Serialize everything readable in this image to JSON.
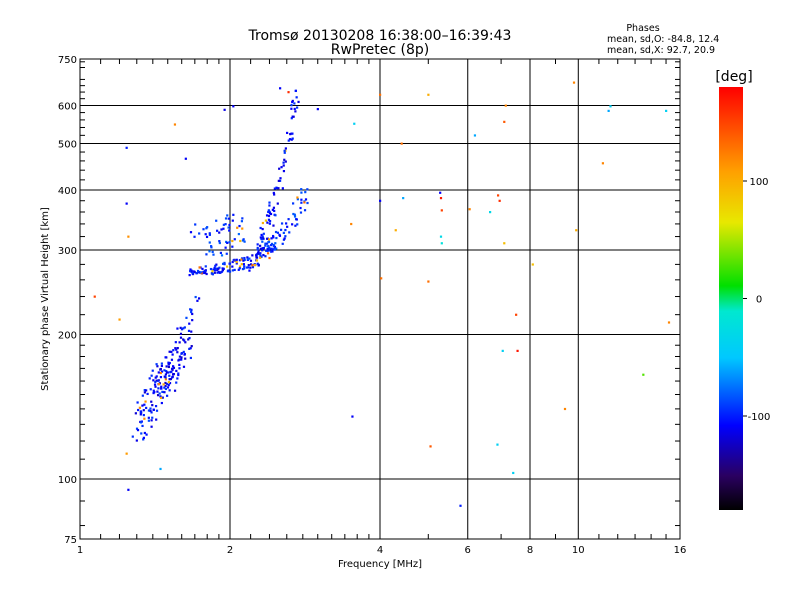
{
  "chart_data": {
    "type": "scatter",
    "title": "Tromsø 20130208 16:38:00–16:39:43",
    "subtitle": "RwPretec (8p)",
    "xlabel": "Frequency [MHz]",
    "ylabel": "Stationary phase Virtual Height [km]",
    "xscale": "log",
    "yscale": "log",
    "xlim": [
      1,
      16
    ],
    "ylim": [
      75,
      750
    ],
    "xticks": [
      1,
      2,
      4,
      6,
      8,
      10,
      16
    ],
    "xtick_labels": [
      "1",
      "2",
      "4",
      "6",
      "8",
      "10",
      "16"
    ],
    "yticks": [
      75,
      100,
      200,
      300,
      400,
      500,
      600,
      750
    ],
    "ytick_labels": [
      "75",
      "100",
      "200",
      "300",
      "400",
      "500",
      "600",
      "750"
    ],
    "grid": true,
    "stats": {
      "heading": "Phases",
      "line_o": "mean, sd,O: -84.8, 12.4",
      "line_x": "mean, sd,X:  92.7, 20.9"
    },
    "colorbar": {
      "label": "[deg]",
      "range": [
        -180,
        180
      ],
      "ticks": [
        100,
        0,
        -100
      ],
      "tick_labels": [
        "100",
        "0",
        "-100"
      ]
    },
    "traces": [
      {
        "start": [
          1.47,
          160
        ],
        "end": [
          1.65,
          205
        ],
        "n": 95,
        "spread_x": 0.04,
        "spread_y": 0.08,
        "phase": -110
      },
      {
        "start": [
          1.32,
          140
        ],
        "end": [
          1.5,
          175
        ],
        "n": 55,
        "spread_x": 0.03,
        "spread_y": 0.07,
        "phase": -105
      },
      {
        "start": [
          1.28,
          125
        ],
        "end": [
          1.45,
          150
        ],
        "n": 30,
        "spread_x": 0.025,
        "spread_y": 0.05,
        "phase": -100
      },
      {
        "start": [
          1.62,
          210
        ],
        "end": [
          1.72,
          235
        ],
        "n": 12,
        "spread_x": 0.02,
        "spread_y": 0.04,
        "phase": -100
      },
      {
        "start": [
          1.66,
          268
        ],
        "end": [
          2.3,
          282
        ],
        "n": 60,
        "spread_x": 0.01,
        "spread_y": 0.012,
        "phase": -105
      },
      {
        "start": [
          1.66,
          272
        ],
        "end": [
          2.45,
          300
        ],
        "n": 60,
        "spread_x": 0.01,
        "spread_y": 0.015,
        "phase": -100
      },
      {
        "start": [
          2.2,
          285
        ],
        "end": [
          2.72,
          640
        ],
        "n": 100,
        "spread_x": 0.015,
        "spread_y": 0.05,
        "phase": -105
      },
      {
        "start": [
          2.35,
          300
        ],
        "end": [
          2.85,
          400
        ],
        "n": 70,
        "spread_x": 0.02,
        "spread_y": 0.04,
        "phase": -95
      },
      {
        "start": [
          1.7,
          330
        ],
        "end": [
          2.1,
          345
        ],
        "n": 30,
        "spread_x": 0.03,
        "spread_y": 0.04,
        "phase": -100
      },
      {
        "start": [
          1.8,
          300
        ],
        "end": [
          2.2,
          330
        ],
        "n": 25,
        "spread_x": 0.03,
        "spread_y": 0.04,
        "phase": -90
      }
    ],
    "points": [
      {
        "x": 1.07,
        "y": 240,
        "phase": 150
      },
      {
        "x": 1.2,
        "y": 215,
        "phase": 110
      },
      {
        "x": 1.24,
        "y": 490,
        "phase": -100
      },
      {
        "x": 1.24,
        "y": 375,
        "phase": -110
      },
      {
        "x": 1.25,
        "y": 320,
        "phase": 115
      },
      {
        "x": 1.25,
        "y": 95,
        "phase": -110
      },
      {
        "x": 1.24,
        "y": 113,
        "phase": 110
      },
      {
        "x": 1.55,
        "y": 548,
        "phase": 120
      },
      {
        "x": 1.45,
        "y": 105,
        "phase": -60
      },
      {
        "x": 1.63,
        "y": 465,
        "phase": -110
      },
      {
        "x": 2.03,
        "y": 598,
        "phase": -110
      },
      {
        "x": 1.95,
        "y": 588,
        "phase": -115
      },
      {
        "x": 2.52,
        "y": 652,
        "phase": -110
      },
      {
        "x": 2.62,
        "y": 640,
        "phase": 160
      },
      {
        "x": 3.0,
        "y": 590,
        "phase": -110
      },
      {
        "x": 3.55,
        "y": 550,
        "phase": -40
      },
      {
        "x": 3.5,
        "y": 340,
        "phase": 120
      },
      {
        "x": 3.52,
        "y": 135,
        "phase": -110
      },
      {
        "x": 4.0,
        "y": 380,
        "phase": -110
      },
      {
        "x": 4.02,
        "y": 262,
        "phase": 130
      },
      {
        "x": 4.0,
        "y": 632,
        "phase": 130
      },
      {
        "x": 4.3,
        "y": 330,
        "phase": 100
      },
      {
        "x": 4.42,
        "y": 500,
        "phase": 130
      },
      {
        "x": 4.45,
        "y": 385,
        "phase": -60
      },
      {
        "x": 5.0,
        "y": 632,
        "phase": 100
      },
      {
        "x": 5.0,
        "y": 258,
        "phase": 130
      },
      {
        "x": 5.05,
        "y": 117,
        "phase": 140
      },
      {
        "x": 5.28,
        "y": 395,
        "phase": -110
      },
      {
        "x": 5.3,
        "y": 385,
        "phase": 170
      },
      {
        "x": 5.32,
        "y": 363,
        "phase": 150
      },
      {
        "x": 5.3,
        "y": 320,
        "phase": -30
      },
      {
        "x": 5.32,
        "y": 310,
        "phase": -20
      },
      {
        "x": 5.8,
        "y": 88,
        "phase": -100
      },
      {
        "x": 6.05,
        "y": 365,
        "phase": 120
      },
      {
        "x": 6.2,
        "y": 520,
        "phase": -60
      },
      {
        "x": 6.65,
        "y": 360,
        "phase": -30
      },
      {
        "x": 6.9,
        "y": 390,
        "phase": 150
      },
      {
        "x": 6.95,
        "y": 380,
        "phase": 160
      },
      {
        "x": 6.88,
        "y": 118,
        "phase": -40
      },
      {
        "x": 7.05,
        "y": 185,
        "phase": -40
      },
      {
        "x": 7.1,
        "y": 555,
        "phase": 140
      },
      {
        "x": 7.15,
        "y": 600,
        "phase": 120
      },
      {
        "x": 7.1,
        "y": 310,
        "phase": 90
      },
      {
        "x": 7.4,
        "y": 103,
        "phase": -40
      },
      {
        "x": 7.5,
        "y": 220,
        "phase": 150
      },
      {
        "x": 7.55,
        "y": 185,
        "phase": 170
      },
      {
        "x": 8.1,
        "y": 280,
        "phase": 90
      },
      {
        "x": 9.4,
        "y": 140,
        "phase": 120
      },
      {
        "x": 9.8,
        "y": 670,
        "phase": 120
      },
      {
        "x": 9.9,
        "y": 330,
        "phase": 100
      },
      {
        "x": 11.2,
        "y": 455,
        "phase": 120
      },
      {
        "x": 11.5,
        "y": 585,
        "phase": -60
      },
      {
        "x": 11.6,
        "y": 598,
        "phase": -40
      },
      {
        "x": 13.5,
        "y": 165,
        "phase": 30
      },
      {
        "x": 15.0,
        "y": 585,
        "phase": -40
      },
      {
        "x": 15.2,
        "y": 212,
        "phase": 120
      }
    ]
  }
}
